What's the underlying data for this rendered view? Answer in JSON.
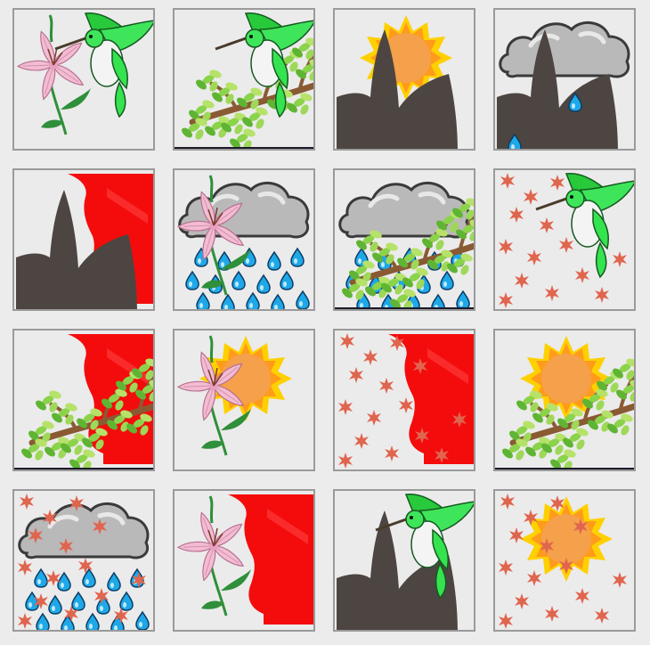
{
  "game": {
    "type": "picture-memory-grid",
    "rows": 4,
    "columns": 4
  },
  "colors": {
    "background": "#ececec",
    "tile_background": "#ebebeb",
    "tile_border": "#9a9a9a",
    "sun_orange": "#f5a04a",
    "sun_ray": "#ffd000",
    "cloud_gray": "#b9b9b9",
    "raindrop": "#1fa8e8",
    "lily_pink": "#f2bcd3",
    "leaf_green": "#2f8f3a",
    "branch_brown": "#8a5a33",
    "bird_green": "#34e34f",
    "flag_red": "#f40c0c",
    "maple_leaf": "#e0654f",
    "silhouette": "#4d4541"
  },
  "tiles": [
    {
      "icons": [
        "lily-flower",
        "hummingbird"
      ]
    },
    {
      "icons": [
        "leafy-branch",
        "hummingbird"
      ]
    },
    {
      "icons": [
        "sun",
        "dark-silhouette"
      ]
    },
    {
      "icons": [
        "cloud-rain",
        "dark-silhouette"
      ]
    },
    {
      "icons": [
        "dark-silhouette",
        "red-flag"
      ]
    },
    {
      "icons": [
        "cloud-rain",
        "lily-flower"
      ]
    },
    {
      "icons": [
        "cloud-rain",
        "leafy-branch"
      ]
    },
    {
      "icons": [
        "maple-leaves",
        "hummingbird"
      ]
    },
    {
      "icons": [
        "red-flag",
        "leafy-branch"
      ]
    },
    {
      "icons": [
        "sun",
        "lily-flower"
      ]
    },
    {
      "icons": [
        "maple-leaves",
        "red-flag"
      ]
    },
    {
      "icons": [
        "sun",
        "leafy-branch"
      ]
    },
    {
      "icons": [
        "cloud-rain",
        "maple-leaves"
      ]
    },
    {
      "icons": [
        "lily-flower",
        "red-flag"
      ]
    },
    {
      "icons": [
        "dark-silhouette",
        "hummingbird"
      ]
    },
    {
      "icons": [
        "sun",
        "maple-leaves"
      ]
    }
  ]
}
